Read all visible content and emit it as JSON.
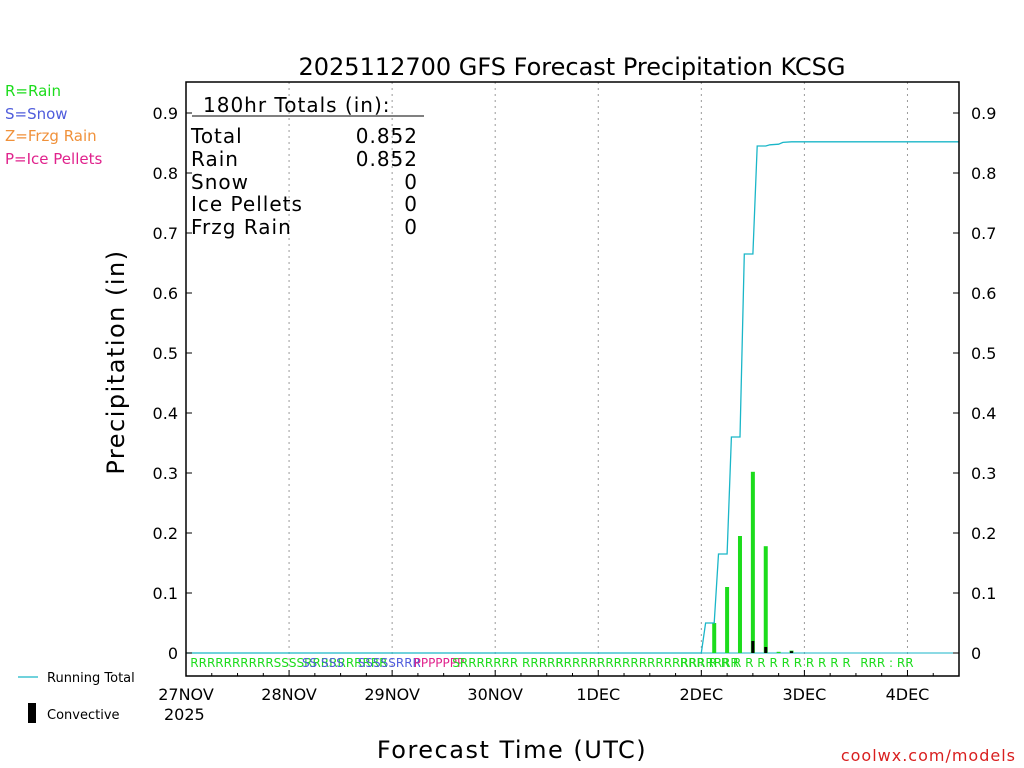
{
  "chart_data": {
    "type": "bar",
    "title": "2025112700 GFS Forecast Precipitation KCSG",
    "xlabel": "Forecast Time (UTC)",
    "ylabel": "Precipitation (in)",
    "ylim": [
      0,
      0.95
    ],
    "yticks": [
      0,
      0.1,
      0.2,
      0.3,
      0.4,
      0.5,
      0.6,
      0.7,
      0.8,
      0.9
    ],
    "xlim_hours": [
      0,
      180
    ],
    "x_ticks": [
      {
        "hour": 0,
        "label": "27NOV"
      },
      {
        "hour": 24,
        "label": "28NOV"
      },
      {
        "hour": 48,
        "label": "29NOV"
      },
      {
        "hour": 72,
        "label": "30NOV"
      },
      {
        "hour": 96,
        "label": "1DEC"
      },
      {
        "hour": 120,
        "label": "2DEC"
      },
      {
        "hour": 144,
        "label": "3DEC"
      },
      {
        "hour": 168,
        "label": "4DEC"
      }
    ],
    "year_label": "2025",
    "grid": "vertical dotted at each day",
    "legend_types": [
      {
        "text": "R=Rain",
        "color": "#1cdc1c"
      },
      {
        "text": "S=Snow",
        "color": "#4f5cdc"
      },
      {
        "text": "Z=Frzg Rain",
        "color": "#f0913a"
      },
      {
        "text": "P=Ice Pellets",
        "color": "#e0228c"
      }
    ],
    "legend_series": [
      {
        "text": "Running Total",
        "color": "#1ab6c8"
      },
      {
        "text": "Convective",
        "color": "#000000"
      }
    ],
    "totals": {
      "header": "180hr Totals (in):",
      "rows": [
        {
          "label": "Total",
          "value": "0.852"
        },
        {
          "label": "Rain",
          "value": "0.852"
        },
        {
          "label": "Snow",
          "value": "0"
        },
        {
          "label": "Ice Pellets",
          "value": "0"
        },
        {
          "label": "Frzg Rain",
          "value": "0"
        }
      ]
    },
    "precip_bars": [
      {
        "hour": 123,
        "value": 0.05,
        "convective": 0.0
      },
      {
        "hour": 126,
        "value": 0.11,
        "convective": 0.0
      },
      {
        "hour": 129,
        "value": 0.195,
        "convective": 0.0
      },
      {
        "hour": 132,
        "value": 0.302,
        "convective": 0.02
      },
      {
        "hour": 135,
        "value": 0.178,
        "convective": 0.01
      },
      {
        "hour": 138,
        "value": 0.002,
        "convective": 0.0
      },
      {
        "hour": 141,
        "value": 0.004,
        "convective": 0.003
      }
    ],
    "running_total": {
      "color": "#1ab6c8",
      "x": [
        0,
        118,
        120,
        121,
        123,
        124,
        126,
        127,
        129,
        130,
        132,
        133,
        135,
        136,
        138,
        139,
        141,
        142,
        180
      ],
      "y": [
        0,
        0,
        0,
        0.05,
        0.05,
        0.165,
        0.165,
        0.36,
        0.36,
        0.665,
        0.665,
        0.845,
        0.845,
        0.847,
        0.848,
        0.851,
        0.852,
        0.852,
        0.852
      ]
    },
    "ptype_strip": [
      {
        "hour": 1,
        "text": "RRRRRRRRRRSSSSRRRRRRRRRR",
        "type": "R"
      },
      {
        "hour": 27,
        "text": "SS SSS",
        "type": "S"
      },
      {
        "hour": 40,
        "text": "SSSSSRRR",
        "type": "S"
      },
      {
        "hour": 53,
        "text": "PPPPPPP",
        "type": "P"
      },
      {
        "hour": 62,
        "text": "SRRRRRRR RRRRR",
        "type": "R"
      },
      {
        "hour": 86,
        "text": "RRRRRRRRRRRRRRRRRRRRRR",
        "type": "R"
      },
      {
        "hour": 115,
        "text": "RRR R R R R R R R R R R R R",
        "type": "R"
      },
      {
        "hour": 157,
        "text": "RRR : RR",
        "type": "R"
      }
    ],
    "credit": "coolwx.com/models"
  }
}
